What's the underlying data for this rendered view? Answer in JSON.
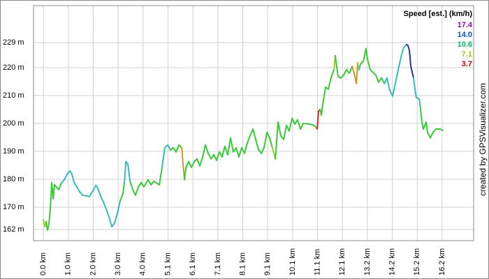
{
  "chart_data": {
    "type": "line",
    "x": [
      0.0,
      0.06,
      0.11,
      0.17,
      0.23,
      0.28,
      0.34,
      0.4,
      0.45,
      0.62,
      0.74,
      0.85,
      0.96,
      1.08,
      1.16,
      1.25,
      1.36,
      1.47,
      1.59,
      1.87,
      2.04,
      2.13,
      2.21,
      2.33,
      2.44,
      2.55,
      2.67,
      2.78,
      2.89,
      3.01,
      3.12,
      3.23,
      3.29,
      3.35,
      3.43,
      3.52,
      3.63,
      3.74,
      3.86,
      3.97,
      4.08,
      4.25,
      4.37,
      4.48,
      4.71,
      4.82,
      4.93,
      5.05,
      5.16,
      5.28,
      5.39,
      5.5,
      5.62,
      5.67,
      5.73,
      5.79,
      5.9,
      6.01,
      6.13,
      6.24,
      6.35,
      6.47,
      6.58,
      6.69,
      6.81,
      6.92,
      7.03,
      7.15,
      7.26,
      7.37,
      7.49,
      7.6,
      7.71,
      7.83,
      7.94,
      8.05,
      8.17,
      8.28,
      8.39,
      8.51,
      8.62,
      8.74,
      8.85,
      8.96,
      9.08,
      9.19,
      9.3,
      9.42,
      9.53,
      9.64,
      9.76,
      9.87,
      9.98,
      10.1,
      10.21,
      10.32,
      10.44,
      10.55,
      10.78,
      11.0,
      11.12,
      11.17,
      11.23,
      11.29,
      11.34,
      11.46,
      11.57,
      11.68,
      11.8,
      11.85,
      11.91,
      11.97,
      12.08,
      12.19,
      12.31,
      12.42,
      12.54,
      12.65,
      12.71,
      12.76,
      12.82,
      12.88,
      12.99,
      13.1,
      13.16,
      13.27,
      13.39,
      13.5,
      13.61,
      13.73,
      13.84,
      13.95,
      14.07,
      14.18,
      14.29,
      14.41,
      14.52,
      14.63,
      14.75,
      14.8,
      14.86,
      14.92,
      15.03,
      15.09,
      15.14,
      15.26,
      15.31,
      15.37,
      15.43,
      15.54,
      15.6,
      15.71,
      15.82,
      15.94,
      16.11,
      16.22
    ],
    "values": [
      165.5,
      163.0,
      164.8,
      161.8,
      164.3,
      169.3,
      178.8,
      173.0,
      178.0,
      176.3,
      178.8,
      179.8,
      181.8,
      183.0,
      181.8,
      178.8,
      177.3,
      175.5,
      174.3,
      173.8,
      176.3,
      177.8,
      176.8,
      173.8,
      171.8,
      169.3,
      166.3,
      163.0,
      164.3,
      168.0,
      172.3,
      174.8,
      178.8,
      186.3,
      185.5,
      179.3,
      176.3,
      174.3,
      177.3,
      178.8,
      177.3,
      179.8,
      178.0,
      179.3,
      178.0,
      184.3,
      191.3,
      192.3,
      190.5,
      191.3,
      189.8,
      192.3,
      191.3,
      185.5,
      179.8,
      184.3,
      186.3,
      184.3,
      186.3,
      187.3,
      184.8,
      188.0,
      192.3,
      189.3,
      187.3,
      188.8,
      186.8,
      189.8,
      188.0,
      191.8,
      188.8,
      194.8,
      189.8,
      191.3,
      188.0,
      191.3,
      189.3,
      193.0,
      195.5,
      198.0,
      194.3,
      190.5,
      189.3,
      191.3,
      196.8,
      194.8,
      191.3,
      187.3,
      200.5,
      195.5,
      194.3,
      199.3,
      197.3,
      201.8,
      199.8,
      201.3,
      198.0,
      200.0,
      199.8,
      199.3,
      198.0,
      204.3,
      205.0,
      203.0,
      206.8,
      213.0,
      212.3,
      216.3,
      219.3,
      224.3,
      220.5,
      216.8,
      216.3,
      217.3,
      219.3,
      218.0,
      220.5,
      216.8,
      214.3,
      221.8,
      219.3,
      221.3,
      222.3,
      226.8,
      223.0,
      219.3,
      218.3,
      217.3,
      214.8,
      216.3,
      214.3,
      216.3,
      211.8,
      209.8,
      214.3,
      219.3,
      223.8,
      227.3,
      228.3,
      228.0,
      226.3,
      220.5,
      216.3,
      212.3,
      209.3,
      208.8,
      205.5,
      200.5,
      198.0,
      200.5,
      196.8,
      194.8,
      196.8,
      198.0,
      198.0,
      197.5
    ],
    "colors": [
      "#33cc33",
      "#99cc22",
      "#99cc22",
      "#33cc33",
      "#33cc33",
      "#33cc33",
      "#33cc33",
      "#33cc33",
      "#33cc33",
      "#33cc33",
      "#33cc33",
      "#33bbbb",
      "#33bbbb",
      "#33bbbb",
      "#33bbbb",
      "#33bbbb",
      "#33bbbb",
      "#33bbbb",
      "#33bbbb",
      "#33bbbb",
      "#33bbbb",
      "#33bbbb",
      "#33bbbb",
      "#33bbbb",
      "#33bbbb",
      "#33bbbb",
      "#33bbbb",
      "#33bbbb",
      "#33bbbb",
      "#33bbbb",
      "#33bbbb",
      "#33cc33",
      "#33cc33",
      "#33bbbb",
      "#33bbbb",
      "#33bbbb",
      "#33cc33",
      "#33cc33",
      "#33cc33",
      "#33cc33",
      "#33cc33",
      "#33cc33",
      "#33cc33",
      "#33cc33",
      "#33cc33",
      "#33cc33",
      "#33bbbb",
      "#33bbbb",
      "#33bbbb",
      "#33cc33",
      "#33cc33",
      "#33cc33",
      "#33cc33",
      "#cc9922",
      "#cc9922",
      "#33cc33",
      "#33cc33",
      "#33cc33",
      "#33cc33",
      "#33cc33",
      "#33cc33",
      "#33cc33",
      "#33cc33",
      "#33cc33",
      "#33cc33",
      "#33cc33",
      "#33cc33",
      "#33cc33",
      "#33cc33",
      "#33cc33",
      "#33cc33",
      "#33cc33",
      "#33cc33",
      "#33cc33",
      "#33cc33",
      "#33cc33",
      "#33cc33",
      "#33cc33",
      "#33cc33",
      "#33cc33",
      "#33cc33",
      "#33cc33",
      "#33cc33",
      "#33cc33",
      "#33cc33",
      "#33cc33",
      "#33cc33",
      "#99cc22",
      "#33cc33",
      "#33cc33",
      "#33cc33",
      "#33cc33",
      "#33cc33",
      "#33cc33",
      "#33cc33",
      "#33cc33",
      "#33cc33",
      "#33cc33",
      "#33cc33",
      "#33cc33",
      "#33cc33",
      "#dd2222",
      "#dd2222",
      "#33cc33",
      "#33cc33",
      "#33cc33",
      "#33cc33",
      "#33cc33",
      "#33cc33",
      "#99cc22",
      "#33cc33",
      "#33cc33",
      "#33cc33",
      "#33cc33",
      "#33cc33",
      "#33cc33",
      "#33cc33",
      "#cc9922",
      "#cc9922",
      "#cc9922",
      "#99cc22",
      "#33bbbb",
      "#33cc33",
      "#33cc33",
      "#33cc33",
      "#33cc33",
      "#33cc33",
      "#33cc33",
      "#33cc33",
      "#33cc33",
      "#33cc33",
      "#33bbbb",
      "#33bbbb",
      "#33bbbb",
      "#33bbbb",
      "#33bbbb",
      "#33bbbb",
      "#33bbbb",
      "#33bbbb",
      "#2233aa",
      "#2233aa",
      "#2233aa",
      "#2233aa",
      "#33bbbb",
      "#33bbbb",
      "#33bbbb",
      "#33bbbb",
      "#33cc33",
      "#33cc33",
      "#33cc33",
      "#33cc33",
      "#33cc33",
      "#33cc33",
      "#33cc33",
      "#33cc33",
      "#33cc33"
    ],
    "xlim": [
      -0.4,
      17.47
    ],
    "ylim": [
      158,
      242.25
    ],
    "xticks": [
      {
        "value": 0,
        "label": "0.0 km"
      },
      {
        "value": 1.012,
        "label": "1.0 km"
      },
      {
        "value": 2.024,
        "label": "2.0 km"
      },
      {
        "value": 3.036,
        "label": "3.0 km"
      },
      {
        "value": 4.048,
        "label": "4.0 km"
      },
      {
        "value": 5.06,
        "label": "5.1 km"
      },
      {
        "value": 6.072,
        "label": "6.1 km"
      },
      {
        "value": 7.084,
        "label": "7.1 km"
      },
      {
        "value": 8.096,
        "label": "8.1 km"
      },
      {
        "value": 9.108,
        "label": "9.1 km"
      },
      {
        "value": 10.12,
        "label": "10.1 km"
      },
      {
        "value": 11.132,
        "label": "11.1 km"
      },
      {
        "value": 12.144,
        "label": "12.1 km"
      },
      {
        "value": 13.156,
        "label": "13.2 km"
      },
      {
        "value": 14.168,
        "label": "14.2 km"
      },
      {
        "value": 15.18,
        "label": "15.2 km"
      },
      {
        "value": 16.192,
        "label": "16.2 km"
      }
    ],
    "yticks": [
      {
        "value": 162,
        "label": "162 m"
      },
      {
        "value": 170,
        "label": "170 m"
      },
      {
        "value": 180,
        "label": "180 m"
      },
      {
        "value": 190,
        "label": "190 m"
      },
      {
        "value": 200,
        "label": "200 m"
      },
      {
        "value": 210,
        "label": "210 m"
      },
      {
        "value": 220,
        "label": "220 m"
      },
      {
        "value": 229,
        "label": "229 m"
      }
    ],
    "grid": true,
    "legend": {
      "title": "Speed [est.] (km/h)",
      "items": [
        {
          "value": 17.4,
          "color": "#9900cc"
        },
        {
          "value": 14,
          "label": "14.0",
          "color": "#0055cc"
        },
        {
          "value": 10.6,
          "color": "#00bb66"
        },
        {
          "value": 7.1,
          "color": "#99cc00"
        },
        {
          "value": 3.7,
          "color": "#cc0000"
        }
      ]
    },
    "credit": "created by GPSVisualizer.com"
  }
}
